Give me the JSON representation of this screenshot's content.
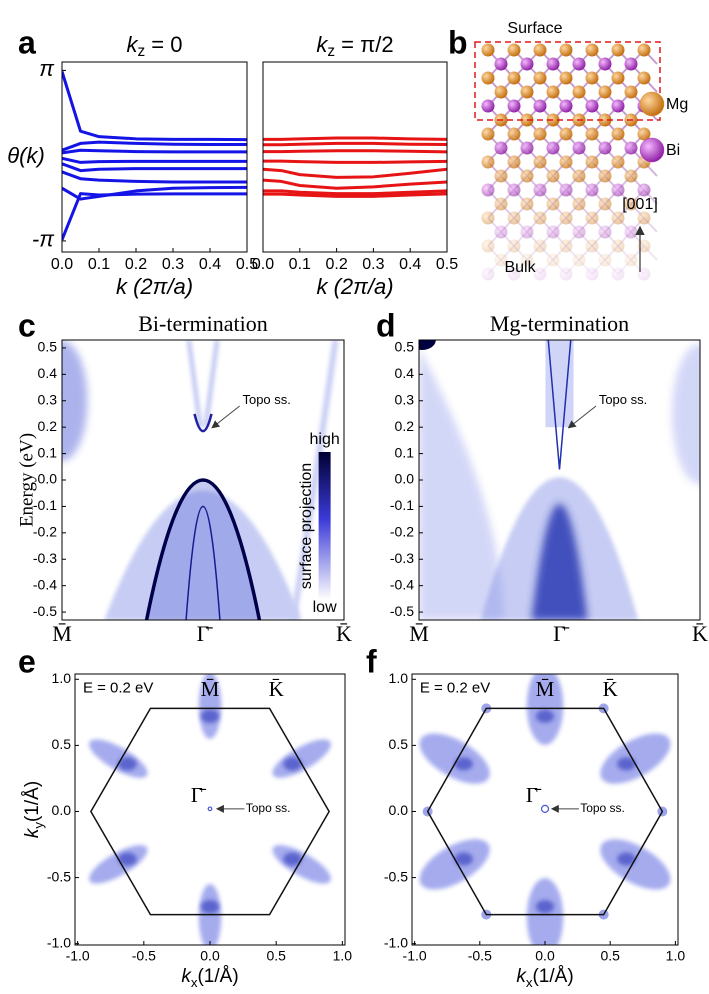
{
  "chart_data": [
    {
      "type": "line",
      "panel_label": "a",
      "title": {
        "var": "k",
        "sub": "z",
        "rest": " = 0"
      },
      "ylabel": "θ(k)",
      "xlabel": "k (2π/a)",
      "color": "#1414e6",
      "x": [
        0,
        0.05,
        0.1,
        0.2,
        0.3,
        0.4,
        0.5
      ],
      "series": [
        {
          "values": [
            3.1,
            0.9,
            0.7,
            0.62,
            0.6,
            0.6,
            0.59
          ]
        },
        {
          "values": [
            0.2,
            0.45,
            0.5,
            0.45,
            0.42,
            0.41,
            0.41
          ]
        },
        {
          "values": [
            0.1,
            0.2,
            0.18,
            0.15,
            0.14,
            0.14,
            0.14
          ]
        },
        {
          "values": [
            -0.1,
            -0.25,
            -0.22,
            -0.21,
            -0.21,
            -0.21,
            -0.21
          ]
        },
        {
          "values": [
            -0.3,
            -0.55,
            -0.5,
            -0.48,
            -0.48,
            -0.48,
            -0.48
          ]
        },
        {
          "values": [
            -0.6,
            -0.85,
            -0.9,
            -0.95,
            -0.97,
            -0.97,
            -0.97
          ]
        },
        {
          "values": [
            -1.2,
            -1.6,
            -1.5,
            -1.3,
            -1.2,
            -1.18,
            -1.17
          ]
        },
        {
          "values": [
            -3.1,
            -1.4,
            -1.45,
            -1.42,
            -1.41,
            -1.41,
            -1.41
          ]
        }
      ],
      "xlim": [
        0,
        0.5
      ],
      "ylim": [
        -3.55,
        3.45
      ],
      "xticks": [
        {
          "value": 0,
          "label": "0.0"
        },
        0.1,
        0.2,
        0.3,
        0.4,
        0.5
      ],
      "yticks": [
        {
          "value": 3.14159,
          "label": "π"
        },
        {
          "value": -3.14159,
          "label": "-π"
        }
      ]
    },
    {
      "type": "line",
      "title": {
        "var": "k",
        "sub": "z",
        "rest": " = π/2"
      },
      "xlabel": "k (2π/a)",
      "color": "#e61414",
      "x": [
        0,
        0.05,
        0.1,
        0.2,
        0.3,
        0.4,
        0.5
      ],
      "series": [
        {
          "values": [
            0.6,
            0.6,
            0.62,
            0.65,
            0.65,
            0.62,
            0.6
          ]
        },
        {
          "values": [
            0.4,
            0.4,
            0.42,
            0.45,
            0.45,
            0.42,
            0.41
          ]
        },
        {
          "values": [
            0.15,
            0.15,
            0.16,
            0.18,
            0.18,
            0.16,
            0.14
          ]
        },
        {
          "values": [
            -0.2,
            -0.2,
            -0.22,
            -0.25,
            -0.25,
            -0.23,
            -0.21
          ]
        },
        {
          "values": [
            -0.5,
            -0.55,
            -0.7,
            -0.8,
            -0.78,
            -0.65,
            -0.5
          ]
        },
        {
          "values": [
            -0.9,
            -0.95,
            -1.1,
            -1.2,
            -1.15,
            -1.05,
            -0.97
          ]
        },
        {
          "values": [
            -1.3,
            -1.3,
            -1.35,
            -1.4,
            -1.4,
            -1.35,
            -1.3
          ]
        },
        {
          "values": [
            -1.42,
            -1.42,
            -1.45,
            -1.5,
            -1.5,
            -1.45,
            -1.41
          ]
        }
      ],
      "xlim": [
        0,
        0.5
      ],
      "ylim": [
        -3.55,
        3.45
      ],
      "xticks": [
        {
          "value": 0,
          "label": "0.0"
        },
        0.1,
        0.2,
        0.3,
        0.4,
        0.5
      ]
    },
    {
      "type": "spectral",
      "panel_label": "c",
      "title": "Bi-termination",
      "ylabel": "Energy (eV)",
      "categories": [
        "M̄",
        "Γ̄",
        "K̄"
      ],
      "annotation": "Topo ss.",
      "colorbar": {
        "label": "surface projection",
        "high": "high",
        "low": "low"
      },
      "ylim": [
        -0.53,
        0.53
      ],
      "yticks": [
        0.5,
        0.4,
        0.3,
        0.2,
        0.1,
        {
          "value": 0,
          "label": "0.0"
        },
        -0.1,
        -0.2,
        -0.3,
        -0.4,
        -0.5
      ]
    },
    {
      "type": "spectral",
      "panel_label": "d",
      "title": "Mg-termination",
      "categories": [
        "M̄",
        "Γ̄",
        "K̄"
      ],
      "annotation": "Topo ss.",
      "ylim": [
        -0.53,
        0.53
      ],
      "yticks": [
        0.5,
        0.4,
        0.3,
        0.2,
        0.1,
        {
          "value": 0,
          "label": "0.0"
        },
        -0.1,
        -0.2,
        -0.3,
        -0.4,
        -0.5
      ]
    },
    {
      "type": "fermi",
      "panel_label": "e",
      "energy_label": "E = 0.2 eV",
      "points": [
        "M̄",
        "K̄",
        "Γ̄"
      ],
      "annotation": "Topo ss.",
      "xlabel": {
        "var": "k",
        "sub": "x",
        "rest": "(1/Å)"
      },
      "ylabel": {
        "var": "k",
        "sub": "y",
        "rest": "(1/Å)"
      },
      "xlim": [
        -1.02,
        1.02
      ],
      "ylim": [
        -1.01,
        1.04
      ],
      "xticks": [
        {
          "value": -1,
          "label": "-1.0"
        },
        -0.5,
        {
          "value": 0,
          "label": "0.0"
        },
        0.5,
        {
          "value": 1,
          "label": "1.0"
        }
      ],
      "yticks": [
        {
          "value": 1,
          "label": "1.0"
        },
        0.5,
        {
          "value": 0,
          "label": "0.0"
        },
        -0.5,
        {
          "value": -1,
          "label": "-1.0"
        }
      ]
    },
    {
      "type": "fermi",
      "panel_label": "f",
      "energy_label": "E = 0.2 eV",
      "points": [
        "M̄",
        "K̄",
        "Γ̄"
      ],
      "annotation": "Topo ss.",
      "xlabel": {
        "var": "k",
        "sub": "x",
        "rest": "(1/Å)"
      },
      "xlim": [
        -1.02,
        1.02
      ],
      "ylim": [
        -1.01,
        1.04
      ],
      "xticks": [
        {
          "value": -1,
          "label": "-1.0"
        },
        -0.5,
        {
          "value": 0,
          "label": "0.0"
        },
        0.5,
        {
          "value": 1,
          "label": "1.0"
        }
      ],
      "yticks": [
        {
          "value": 1,
          "label": "1.0"
        },
        0.5,
        {
          "value": 0,
          "label": "0.0"
        },
        -0.5,
        {
          "value": -1,
          "label": "-1.0"
        }
      ]
    }
  ],
  "structure": {
    "panel_label": "b",
    "surface_label": "Surface",
    "bulk_label": "Bulk",
    "direction": "[001]",
    "legend": [
      {
        "label": "Mg",
        "color": "#e08a1e"
      },
      {
        "label": "Bi",
        "color": "#b030c8"
      }
    ]
  }
}
